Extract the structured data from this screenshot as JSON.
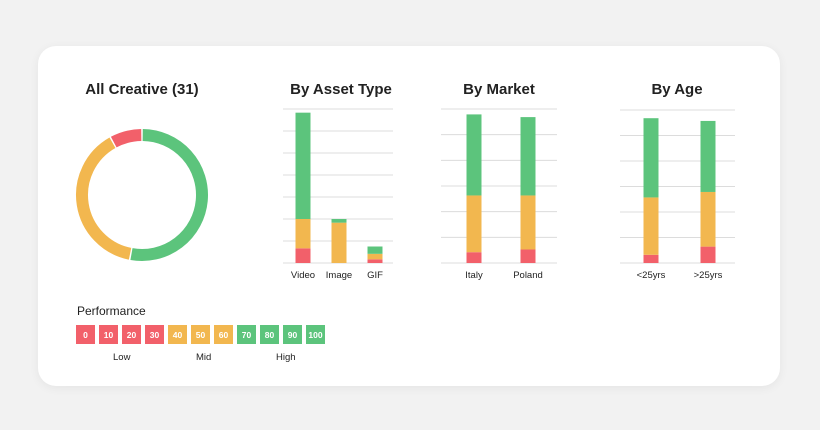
{
  "colors": {
    "low": "#f2606a",
    "mid": "#f2b74f",
    "high": "#5cc47c",
    "grid": "#dcdcdc",
    "text": "#222222"
  },
  "chart_data": [
    {
      "type": "pie",
      "title": "All Creative (31)",
      "labels": [
        "High",
        "Mid",
        "Low"
      ],
      "values": [
        53,
        39,
        8
      ]
    },
    {
      "type": "bar",
      "stacked": true,
      "title": "By Asset Type",
      "categories": [
        "Video",
        "Image",
        "GIF"
      ],
      "series": [
        {
          "values": [
            4,
            0,
            1
          ]
        },
        {
          "values": [
            8,
            11,
            1.5
          ]
        },
        {
          "values": [
            29,
            1,
            2
          ]
        }
      ],
      "ylim": [
        0,
        42
      ],
      "grid": true
    },
    {
      "type": "bar",
      "stacked": true,
      "title": "By Market",
      "categories": [
        "Italy",
        "Poland"
      ],
      "series": [
        {
          "values": [
            4,
            5
          ]
        },
        {
          "values": [
            21,
            20
          ]
        },
        {
          "values": [
            30,
            29
          ]
        }
      ],
      "ylim": [
        0,
        57
      ],
      "grid": true
    },
    {
      "type": "bar",
      "stacked": true,
      "title": "By Age",
      "categories": [
        "<25yrs",
        ">25yrs"
      ],
      "series": [
        {
          "values": [
            3,
            6
          ]
        },
        {
          "values": [
            21,
            20
          ]
        },
        {
          "values": [
            29,
            26
          ]
        }
      ],
      "ylim": [
        0,
        56
      ],
      "grid": true
    }
  ],
  "performance": {
    "title": "Performance",
    "steps": [
      {
        "label": "0",
        "level": "low"
      },
      {
        "label": "10",
        "level": "low"
      },
      {
        "label": "20",
        "level": "low"
      },
      {
        "label": "30",
        "level": "low"
      },
      {
        "label": "40",
        "level": "mid"
      },
      {
        "label": "50",
        "level": "mid"
      },
      {
        "label": "60",
        "level": "mid"
      },
      {
        "label": "70",
        "level": "high"
      },
      {
        "label": "80",
        "level": "high"
      },
      {
        "label": "90",
        "level": "high"
      },
      {
        "label": "100",
        "level": "high"
      }
    ],
    "low_label": "Low",
    "mid_label": "Mid",
    "high_label": "High"
  }
}
